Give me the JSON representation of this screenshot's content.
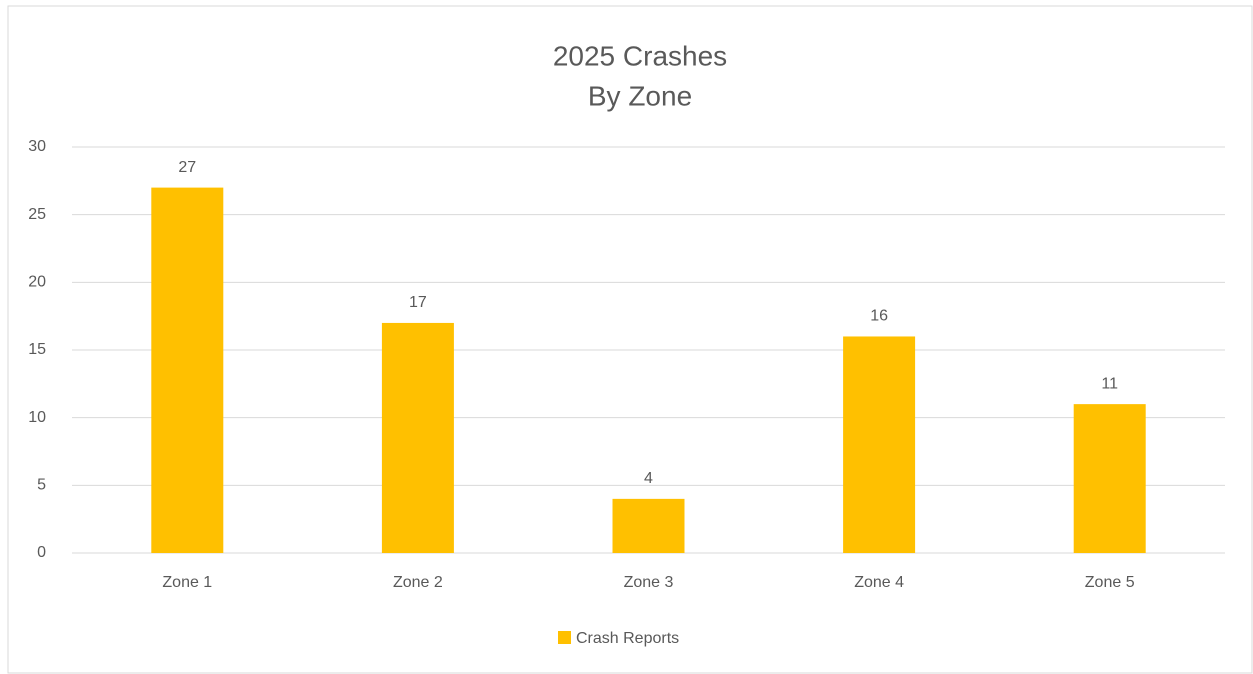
{
  "chart_data": {
    "type": "bar",
    "title": [
      "2025 Crashes",
      "By Zone"
    ],
    "categories": [
      "Zone 1",
      "Zone 2",
      "Zone 3",
      "Zone 4",
      "Zone 5"
    ],
    "series": [
      {
        "name": "Crash Reports",
        "color": "#ffc000",
        "values": [
          27,
          17,
          4,
          16,
          11
        ]
      }
    ],
    "ylim": [
      0,
      30
    ],
    "yticks": [
      0,
      5,
      10,
      15,
      20,
      25,
      30
    ],
    "grid": true,
    "legend": "bottom",
    "data_labels": true
  }
}
